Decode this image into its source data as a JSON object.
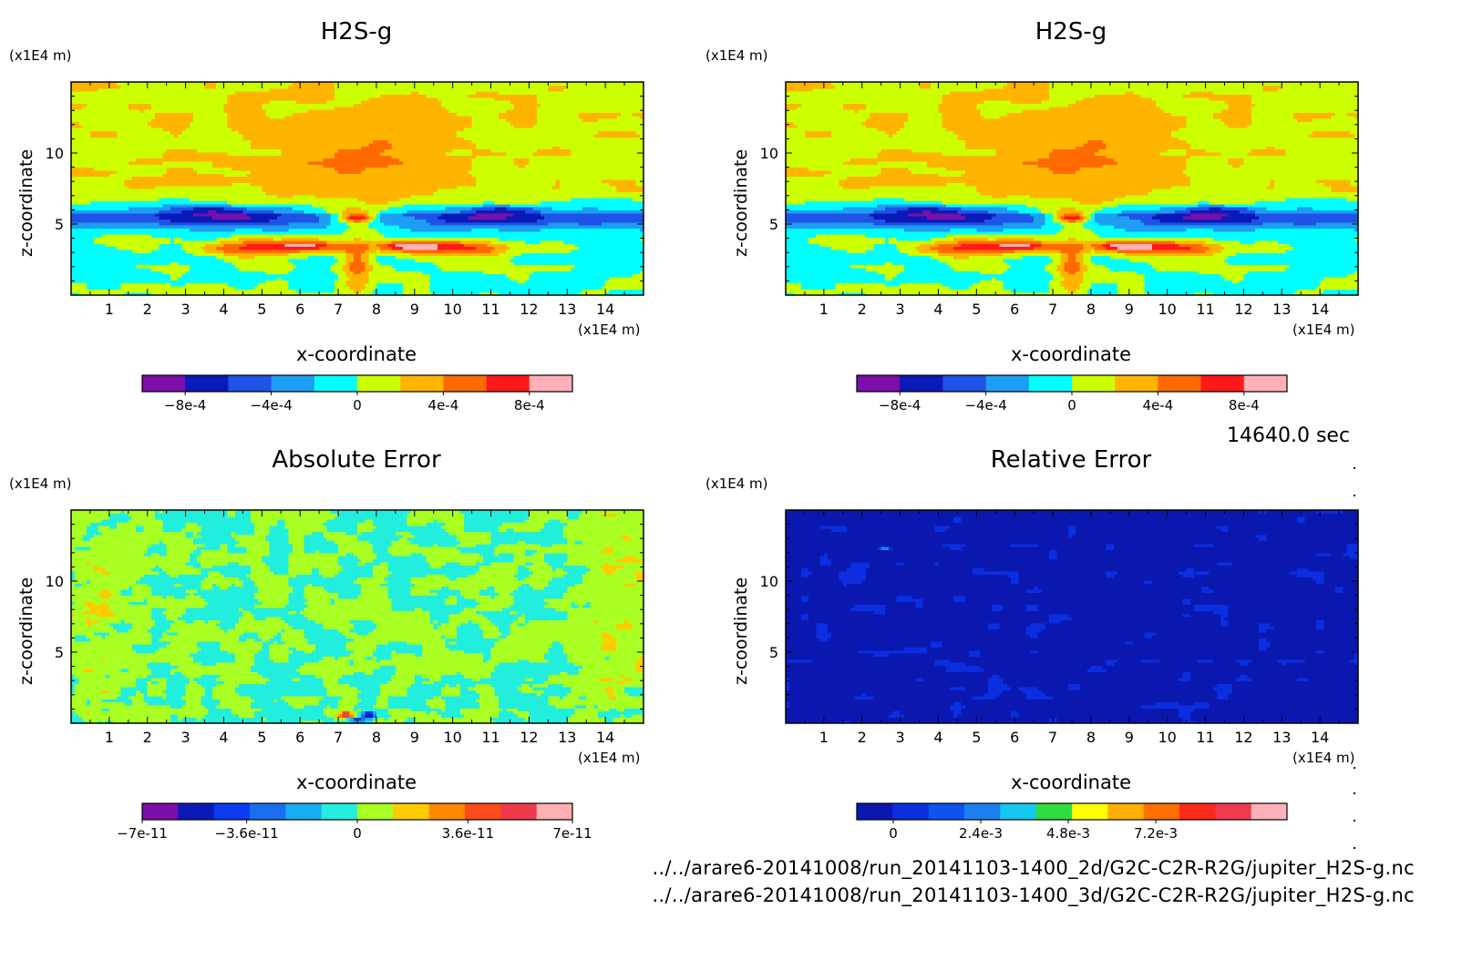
{
  "chart_data": [
    {
      "type": "heatmap",
      "title": "H2S-g",
      "xlabel": "x-coordinate",
      "ylabel": "z-coordinate",
      "x_unit": "(x1E4 m)",
      "y_unit": "(x1E4 m)",
      "xlim": [
        0,
        15
      ],
      "ylim": [
        0,
        15
      ],
      "x_ticks": [
        "1",
        "2",
        "3",
        "4",
        "5",
        "6",
        "7",
        "8",
        "9",
        "10",
        "11",
        "12",
        "13",
        "14"
      ],
      "y_ticks": [
        "5",
        "10"
      ],
      "colorbar": {
        "colors": [
          "#7b0ea8",
          "#0a1ab8",
          "#1f52e6",
          "#1c9ef2",
          "#00ffff",
          "#ccff00",
          "#ffb400",
          "#ff6a00",
          "#ff1a1a",
          "#ffb0b8"
        ],
        "tick_labels": [
          "-8e-4",
          "-4e-4",
          "0",
          "4e-4",
          "8e-4"
        ],
        "range": [
          -0.001,
          0.001
        ]
      },
      "field": "h2s"
    },
    {
      "type": "heatmap",
      "title": "H2S-g",
      "xlabel": "x-coordinate",
      "ylabel": "z-coordinate",
      "x_unit": "(x1E4 m)",
      "y_unit": "(x1E4 m)",
      "xlim": [
        0,
        15
      ],
      "ylim": [
        0,
        15
      ],
      "x_ticks": [
        "1",
        "2",
        "3",
        "4",
        "5",
        "6",
        "7",
        "8",
        "9",
        "10",
        "11",
        "12",
        "13",
        "14"
      ],
      "y_ticks": [
        "5",
        "10"
      ],
      "colorbar": {
        "colors": [
          "#7b0ea8",
          "#0a1ab8",
          "#1f52e6",
          "#1c9ef2",
          "#00ffff",
          "#ccff00",
          "#ffb400",
          "#ff6a00",
          "#ff1a1a",
          "#ffb0b8"
        ],
        "tick_labels": [
          "-8e-4",
          "-4e-4",
          "0",
          "4e-4",
          "8e-4"
        ],
        "range": [
          -0.001,
          0.001
        ]
      },
      "field": "h2s"
    },
    {
      "type": "heatmap",
      "title": "Absolute Error",
      "xlabel": "x-coordinate",
      "ylabel": "z-coordinate",
      "x_unit": "(x1E4 m)",
      "y_unit": "(x1E4 m)",
      "xlim": [
        0,
        15
      ],
      "ylim": [
        0,
        15
      ],
      "x_ticks": [
        "1",
        "2",
        "3",
        "4",
        "5",
        "6",
        "7",
        "8",
        "9",
        "10",
        "11",
        "12",
        "13",
        "14"
      ],
      "y_ticks": [
        "5",
        "10"
      ],
      "colorbar": {
        "colors": [
          "#7b0ea8",
          "#0a1ab8",
          "#0d3cf0",
          "#1b6ef0",
          "#16aef0",
          "#22eedd",
          "#aaff22",
          "#ffcc00",
          "#ff8800",
          "#ff4a1a",
          "#f03a4a",
          "#ffb0b0"
        ],
        "tick_labels": [
          "-7e-11",
          "-3.6e-11",
          "0",
          "3.6e-11",
          "7e-11"
        ],
        "range": [
          -7e-11,
          7e-11
        ]
      },
      "field": "abs"
    },
    {
      "type": "heatmap",
      "title": "Relative Error",
      "xlabel": "x-coordinate",
      "ylabel": "z-coordinate",
      "x_unit": "(x1E4 m)",
      "y_unit": "(x1E4 m)",
      "xlim": [
        0,
        15
      ],
      "ylim": [
        0,
        15
      ],
      "x_ticks": [
        "1",
        "2",
        "3",
        "4",
        "5",
        "6",
        "7",
        "8",
        "9",
        "10",
        "11",
        "12",
        "13",
        "14"
      ],
      "y_ticks": [
        "5",
        "10"
      ],
      "colorbar": {
        "colors": [
          "#0a18b0",
          "#0a2ee0",
          "#0e52f0",
          "#1a80f0",
          "#14c8f0",
          "#30dd40",
          "#ffff00",
          "#ffb000",
          "#ff7000",
          "#ff2a1a",
          "#f03a50",
          "#ffb0b8"
        ],
        "tick_labels": [
          "0",
          "2.4e-3",
          "4.8e-3",
          "7.2e-3"
        ],
        "range": [
          -0.001,
          0.0108
        ]
      },
      "field": "rel"
    }
  ],
  "time_label": "14640.0 sec",
  "footer": {
    "line1": "../../arare6-20141008/run_20141103-1400_2d/G2C-C2R-R2G/jupiter_H2S-g.nc",
    "line2": "../../arare6-20141008/run_20141103-1400_3d/G2C-C2R-R2G/jupiter_H2S-g.nc"
  }
}
